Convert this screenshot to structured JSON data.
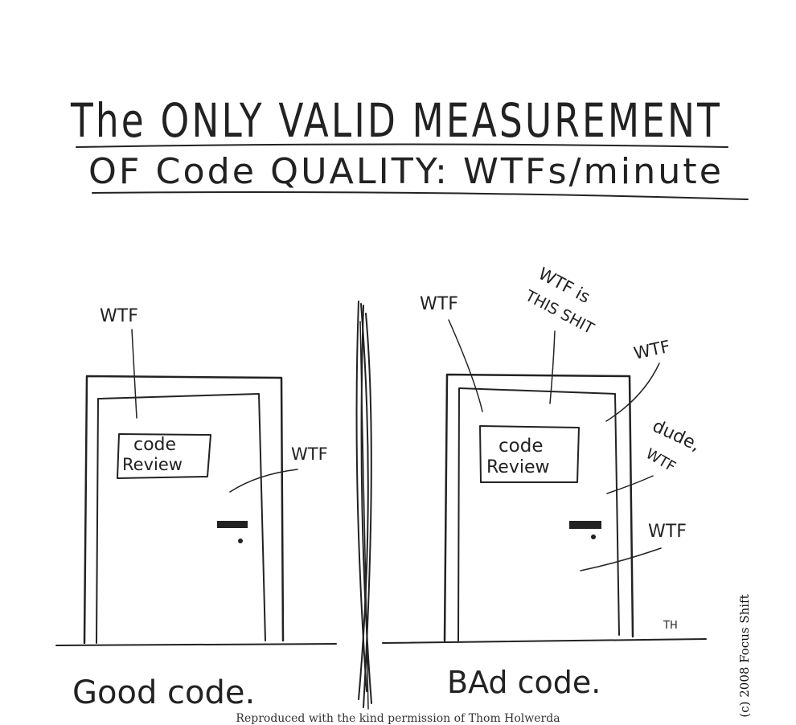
{
  "title": {
    "line1": "The ONLY VALID MEASUREMENT",
    "line2": "OF Code QUALITY: WTFs/minute"
  },
  "left_panel": {
    "door_sign_line1": "code",
    "door_sign_line2": "Review",
    "exclamations": [
      "WTF",
      "WTF"
    ],
    "caption": "Good code."
  },
  "right_panel": {
    "door_sign_line1": "code",
    "door_sign_line2": "Review",
    "exclamations": [
      "WTF",
      "WTF is",
      "THIS SHIT",
      "WTF",
      "dude,",
      "WTF",
      "WTF"
    ],
    "caption": "BAd code.",
    "signature": "TH"
  },
  "copyright": "(c) 2008 Focus Shift",
  "footer": "Reproduced with the kind permission of Thom Holwerda"
}
